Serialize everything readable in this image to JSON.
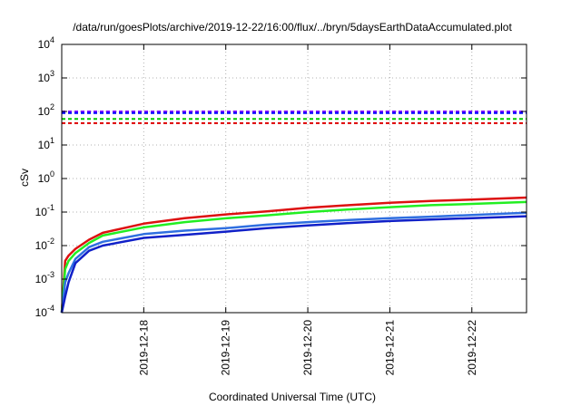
{
  "chart_data": {
    "type": "line",
    "title": "/data/run/goesPlots/archive/2019-12-22/16:00/flux/../bryn/5daysEarthDataAccumulated.plot",
    "xlabel": "Coordinated Universal Time (UTC)",
    "ylabel": "cSv",
    "y_scale": "log",
    "ylim": [
      0.0001,
      10000
    ],
    "xlim": [
      "2019-12-17T00:00",
      "2019-12-22T16:00"
    ],
    "grid": true,
    "y_ticks": [
      {
        "base": "10",
        "exp": "-4"
      },
      {
        "base": "10",
        "exp": "-3"
      },
      {
        "base": "10",
        "exp": "-2"
      },
      {
        "base": "10",
        "exp": "-1"
      },
      {
        "base": "10",
        "exp": "0"
      },
      {
        "base": "10",
        "exp": "1"
      },
      {
        "base": "10",
        "exp": "2"
      },
      {
        "base": "10",
        "exp": "3"
      },
      {
        "base": "10",
        "exp": "4"
      }
    ],
    "x_ticks": [
      "2019-12-18",
      "2019-12-19",
      "2019-12-20",
      "2019-12-21",
      "2019-12-22"
    ],
    "thresholds": [
      {
        "value": 100,
        "color": "#8000ff",
        "style": "dashed"
      },
      {
        "value": 90,
        "color": "#0000ff",
        "style": "dashed"
      },
      {
        "value": 60,
        "color": "#00cc00",
        "style": "dashed"
      },
      {
        "value": 45,
        "color": "#dd0000",
        "style": "dashed"
      }
    ],
    "series": [
      {
        "color": "#dd1111",
        "points": [
          [
            "2019-12-17T00:00",
            0.0001
          ],
          [
            "2019-12-17T01:00",
            0.0035
          ],
          [
            "2019-12-17T02:00",
            0.005
          ],
          [
            "2019-12-17T04:00",
            0.008
          ],
          [
            "2019-12-17T08:00",
            0.015
          ],
          [
            "2019-12-17T12:00",
            0.024
          ],
          [
            "2019-12-18T00:00",
            0.045
          ],
          [
            "2019-12-18T12:00",
            0.066
          ],
          [
            "2019-12-19T00:00",
            0.085
          ],
          [
            "2019-12-19T12:00",
            0.105
          ],
          [
            "2019-12-20T00:00",
            0.135
          ],
          [
            "2019-12-20T12:00",
            0.16
          ],
          [
            "2019-12-21T00:00",
            0.19
          ],
          [
            "2019-12-21T12:00",
            0.215
          ],
          [
            "2019-12-22T00:00",
            0.235
          ],
          [
            "2019-12-22T16:00",
            0.27
          ]
        ]
      },
      {
        "color": "#22ee22",
        "points": [
          [
            "2019-12-17T00:00",
            0.0001
          ],
          [
            "2019-12-17T01:00",
            0.002
          ],
          [
            "2019-12-17T02:00",
            0.0035
          ],
          [
            "2019-12-17T04:00",
            0.006
          ],
          [
            "2019-12-17T08:00",
            0.012
          ],
          [
            "2019-12-17T12:00",
            0.02
          ],
          [
            "2019-12-18T00:00",
            0.035
          ],
          [
            "2019-12-18T12:00",
            0.05
          ],
          [
            "2019-12-19T00:00",
            0.065
          ],
          [
            "2019-12-19T12:00",
            0.08
          ],
          [
            "2019-12-20T00:00",
            0.1
          ],
          [
            "2019-12-20T12:00",
            0.12
          ],
          [
            "2019-12-21T00:00",
            0.14
          ],
          [
            "2019-12-21T12:00",
            0.16
          ],
          [
            "2019-12-22T00:00",
            0.175
          ],
          [
            "2019-12-22T16:00",
            0.2
          ]
        ]
      },
      {
        "color": "#2f6fe0",
        "points": [
          [
            "2019-12-17T00:00",
            0.0001
          ],
          [
            "2019-12-17T01:00",
            0.0008
          ],
          [
            "2019-12-17T02:00",
            0.0015
          ],
          [
            "2019-12-17T04:00",
            0.004
          ],
          [
            "2019-12-17T08:00",
            0.009
          ],
          [
            "2019-12-17T12:00",
            0.013
          ],
          [
            "2019-12-18T00:00",
            0.022
          ],
          [
            "2019-12-18T12:00",
            0.028
          ],
          [
            "2019-12-19T00:00",
            0.033
          ],
          [
            "2019-12-19T12:00",
            0.042
          ],
          [
            "2019-12-20T00:00",
            0.05
          ],
          [
            "2019-12-20T12:00",
            0.058
          ],
          [
            "2019-12-21T00:00",
            0.066
          ],
          [
            "2019-12-21T12:00",
            0.073
          ],
          [
            "2019-12-22T00:00",
            0.082
          ],
          [
            "2019-12-22T16:00",
            0.095
          ]
        ]
      },
      {
        "color": "#1020c8",
        "points": [
          [
            "2019-12-17T00:00",
            0.0001
          ],
          [
            "2019-12-17T01:00",
            0.0003
          ],
          [
            "2019-12-17T02:00",
            0.0008
          ],
          [
            "2019-12-17T04:00",
            0.003
          ],
          [
            "2019-12-17T08:00",
            0.007
          ],
          [
            "2019-12-17T12:00",
            0.01
          ],
          [
            "2019-12-18T00:00",
            0.017
          ],
          [
            "2019-12-18T12:00",
            0.021
          ],
          [
            "2019-12-19T00:00",
            0.026
          ],
          [
            "2019-12-19T12:00",
            0.033
          ],
          [
            "2019-12-20T00:00",
            0.04
          ],
          [
            "2019-12-20T12:00",
            0.047
          ],
          [
            "2019-12-21T00:00",
            0.054
          ],
          [
            "2019-12-21T12:00",
            0.06
          ],
          [
            "2019-12-22T00:00",
            0.066
          ],
          [
            "2019-12-22T16:00",
            0.075
          ]
        ]
      }
    ]
  }
}
